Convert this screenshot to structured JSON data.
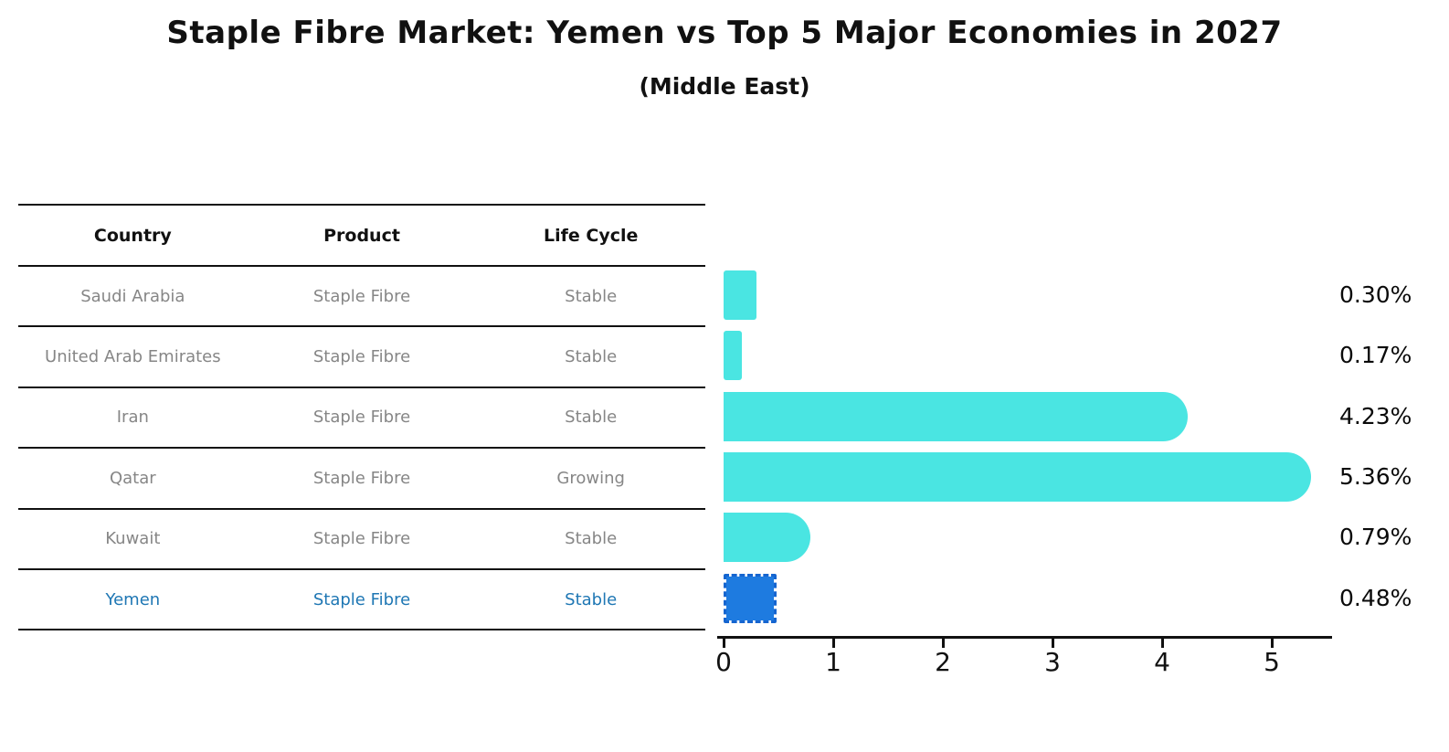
{
  "title": "Staple Fibre Market: Yemen vs Top 5 Major Economies in 2027",
  "subtitle": "(Middle East)",
  "table": {
    "headers": [
      "Country",
      "Product",
      "Life Cycle"
    ],
    "rows": [
      {
        "country": "Saudi Arabia",
        "product": "Staple Fibre",
        "life_cycle": "Stable",
        "highlight": false
      },
      {
        "country": "United Arab Emirates",
        "product": "Staple Fibre",
        "life_cycle": "Stable",
        "highlight": false
      },
      {
        "country": "Iran",
        "product": "Staple Fibre",
        "life_cycle": "Stable",
        "highlight": false
      },
      {
        "country": "Qatar",
        "product": "Staple Fibre",
        "life_cycle": "Growing",
        "highlight": false
      },
      {
        "country": "Kuwait",
        "product": "Staple Fibre",
        "life_cycle": "Stable",
        "highlight": false
      },
      {
        "country": "Yemen",
        "product": "Staple Fibre",
        "life_cycle": "Stable",
        "highlight": true
      }
    ]
  },
  "chart_data": {
    "type": "bar",
    "orientation": "horizontal",
    "title": "Staple Fibre Market: Yemen vs Top 5 Major Economies in 2027 (Middle East)",
    "categories": [
      "Saudi Arabia",
      "United Arab Emirates",
      "Iran",
      "Qatar",
      "Kuwait",
      "Yemen"
    ],
    "values": [
      0.3,
      0.17,
      4.23,
      5.36,
      0.79,
      0.48
    ],
    "value_labels": [
      "0.30%",
      "0.17%",
      "4.23%",
      "5.36%",
      "0.79%",
      "0.48%"
    ],
    "xlabel": "",
    "ylabel": "",
    "xlim": [
      0,
      5.55
    ],
    "xticks": [
      0,
      1,
      2,
      3,
      4,
      5
    ],
    "grid": false,
    "legend": false,
    "highlight_index": 5,
    "bar_color": "#4AE5E2",
    "highlight_bar_color": "#1E7BE0",
    "highlight_text_color": "#1f77b4"
  }
}
